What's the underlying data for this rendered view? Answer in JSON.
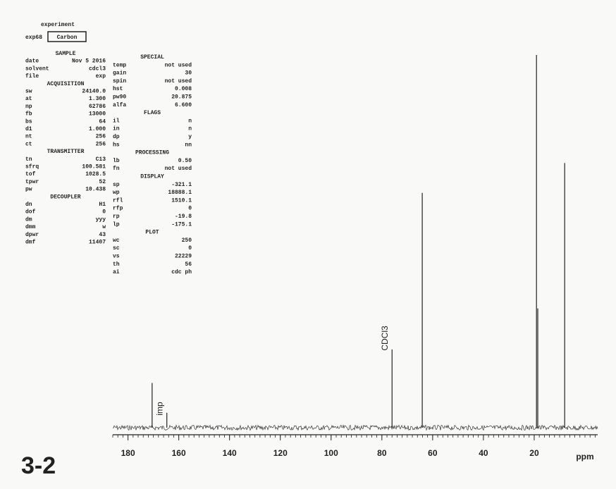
{
  "header": {
    "workspace": "experiment",
    "exp": "exp68",
    "name": "Carbon",
    "label": "3-2"
  },
  "parameters": {
    "left": [
      {
        "title": "SAMPLE",
        "rows": [
          [
            "date",
            "Nov  5 2016"
          ],
          [
            "solvent",
            "cdcl3"
          ],
          [
            "file",
            "exp"
          ]
        ]
      },
      {
        "title": "ACQUISITION",
        "rows": [
          [
            "sw",
            "24140.0"
          ],
          [
            "at",
            "1.300"
          ],
          [
            "np",
            "62786"
          ],
          [
            "fb",
            "13000"
          ],
          [
            "bs",
            "64"
          ],
          [
            "d1",
            "1.000"
          ],
          [
            "nt",
            "256"
          ],
          [
            "ct",
            "256"
          ]
        ]
      },
      {
        "title": "TRANSMITTER",
        "rows": [
          [
            "tn",
            "C13"
          ],
          [
            "sfrq",
            "100.581"
          ],
          [
            "tof",
            "1028.5"
          ],
          [
            "tpwr",
            "52"
          ],
          [
            "pw",
            "10.438"
          ]
        ]
      },
      {
        "title": "DECOUPLER",
        "rows": [
          [
            "dn",
            "H1"
          ],
          [
            "dof",
            "0"
          ],
          [
            "dm",
            "yyy"
          ],
          [
            "dmm",
            "w"
          ],
          [
            "dpwr",
            "43"
          ],
          [
            "dmf",
            "11407"
          ]
        ]
      }
    ],
    "right": [
      {
        "title": "SPECIAL",
        "rows": [
          [
            "temp",
            "not used"
          ],
          [
            "gain",
            "30"
          ],
          [
            "spin",
            "not used"
          ],
          [
            "hst",
            "0.008"
          ],
          [
            "pw90",
            "20.875"
          ],
          [
            "alfa",
            "6.600"
          ]
        ]
      },
      {
        "title": "FLAGS",
        "rows": [
          [
            "il",
            "n"
          ],
          [
            "in",
            "n"
          ],
          [
            "dp",
            "y"
          ],
          [
            "hs",
            "nn"
          ]
        ]
      },
      {
        "title": "PROCESSING",
        "rows": [
          [
            "lb",
            "0.50"
          ],
          [
            "fn",
            "not used"
          ]
        ]
      },
      {
        "title": "DISPLAY",
        "rows": [
          [
            "sp",
            "-321.1"
          ],
          [
            "wp",
            "18888.1"
          ],
          [
            "rfl",
            "1510.1"
          ],
          [
            "rfp",
            "0"
          ],
          [
            "rp",
            "-19.8"
          ],
          [
            "lp",
            "-175.1"
          ]
        ]
      },
      {
        "title": "PLOT",
        "rows": [
          [
            "wc",
            "250"
          ],
          [
            "sc",
            "0"
          ],
          [
            "vs",
            "22229"
          ],
          [
            "th",
            "56"
          ],
          [
            "ai",
            "cdc  ph"
          ]
        ]
      }
    ]
  },
  "chart_data": {
    "type": "nmr",
    "x": [
      170.5,
      164.7,
      76,
      64.1,
      19.1,
      18.6,
      8.0
    ],
    "values": [
      12,
      4,
      21,
      63,
      100,
      32,
      71
    ],
    "xlim": [
      186,
      -5
    ],
    "ylim": [
      0,
      100
    ],
    "xticks": [
      180,
      160,
      140,
      120,
      100,
      80,
      60,
      40,
      20
    ],
    "xlabel": "ppm",
    "color": "#222222",
    "annotations": [
      {
        "text": "CDCl3",
        "x": 76
      },
      {
        "text": "imp",
        "x": 164.7
      }
    ]
  }
}
